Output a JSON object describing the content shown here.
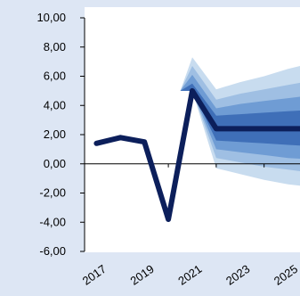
{
  "chart_data": {
    "type": "line",
    "title": "",
    "xlabel": "",
    "ylabel": "",
    "ylim": [
      -6,
      10
    ],
    "xlim": [
      2016.5,
      2025.5
    ],
    "y_ticks": [
      "10,00",
      "8,00",
      "6,00",
      "4,00",
      "2,00",
      "0,00",
      "-2,00",
      "-4,00",
      "-6,00"
    ],
    "y_tick_values": [
      10,
      8,
      6,
      4,
      2,
      0,
      -2,
      -4,
      -6
    ],
    "x_ticks": [
      "2017",
      "2019",
      "2021",
      "2023",
      "2025"
    ],
    "x_tick_values": [
      2017,
      2019,
      2021,
      2023,
      2025
    ],
    "grid": false,
    "legend": "none",
    "series": [
      {
        "x": [
          2017,
          2018,
          2019,
          2020,
          2021,
          2022,
          2023,
          2024,
          2025,
          2026
        ],
        "values": [
          1.4,
          1.8,
          1.5,
          -3.8,
          5.0,
          2.4,
          2.4,
          2.4,
          2.4,
          2.4
        ]
      }
    ],
    "fan_bands": {
      "x": [
        2020.5,
        2021,
        2022,
        2023,
        2024,
        2025,
        2026
      ],
      "bands": [
        {
          "lower": [
            5.0,
            5.0,
            -0.3,
            -0.7,
            -1.1,
            -1.4,
            -1.6
          ],
          "upper": [
            5.0,
            7.3,
            5.1,
            5.6,
            6.0,
            6.5,
            6.9
          ]
        },
        {
          "lower": [
            5.0,
            5.0,
            0.4,
            0.1,
            -0.2,
            -0.4,
            -0.6
          ],
          "upper": [
            5.0,
            6.7,
            4.4,
            4.8,
            5.1,
            5.4,
            5.7
          ]
        },
        {
          "lower": [
            5.0,
            5.0,
            1.0,
            0.8,
            0.6,
            0.4,
            0.3
          ],
          "upper": [
            5.0,
            6.1,
            3.8,
            4.1,
            4.3,
            4.5,
            4.7
          ]
        },
        {
          "lower": [
            5.0,
            5.0,
            1.6,
            1.5,
            1.4,
            1.3,
            1.2
          ],
          "upper": [
            5.0,
            5.5,
            3.3,
            3.4,
            3.5,
            3.6,
            3.7
          ]
        }
      ]
    },
    "colors": {
      "background": "#dde6f4",
      "plot_background": "#ffffff",
      "line": "#0c1f5b",
      "bands": [
        "#c8dcef",
        "#9fbfe3",
        "#6f9cd4",
        "#3f6fb8"
      ],
      "axis": "#000000"
    }
  }
}
